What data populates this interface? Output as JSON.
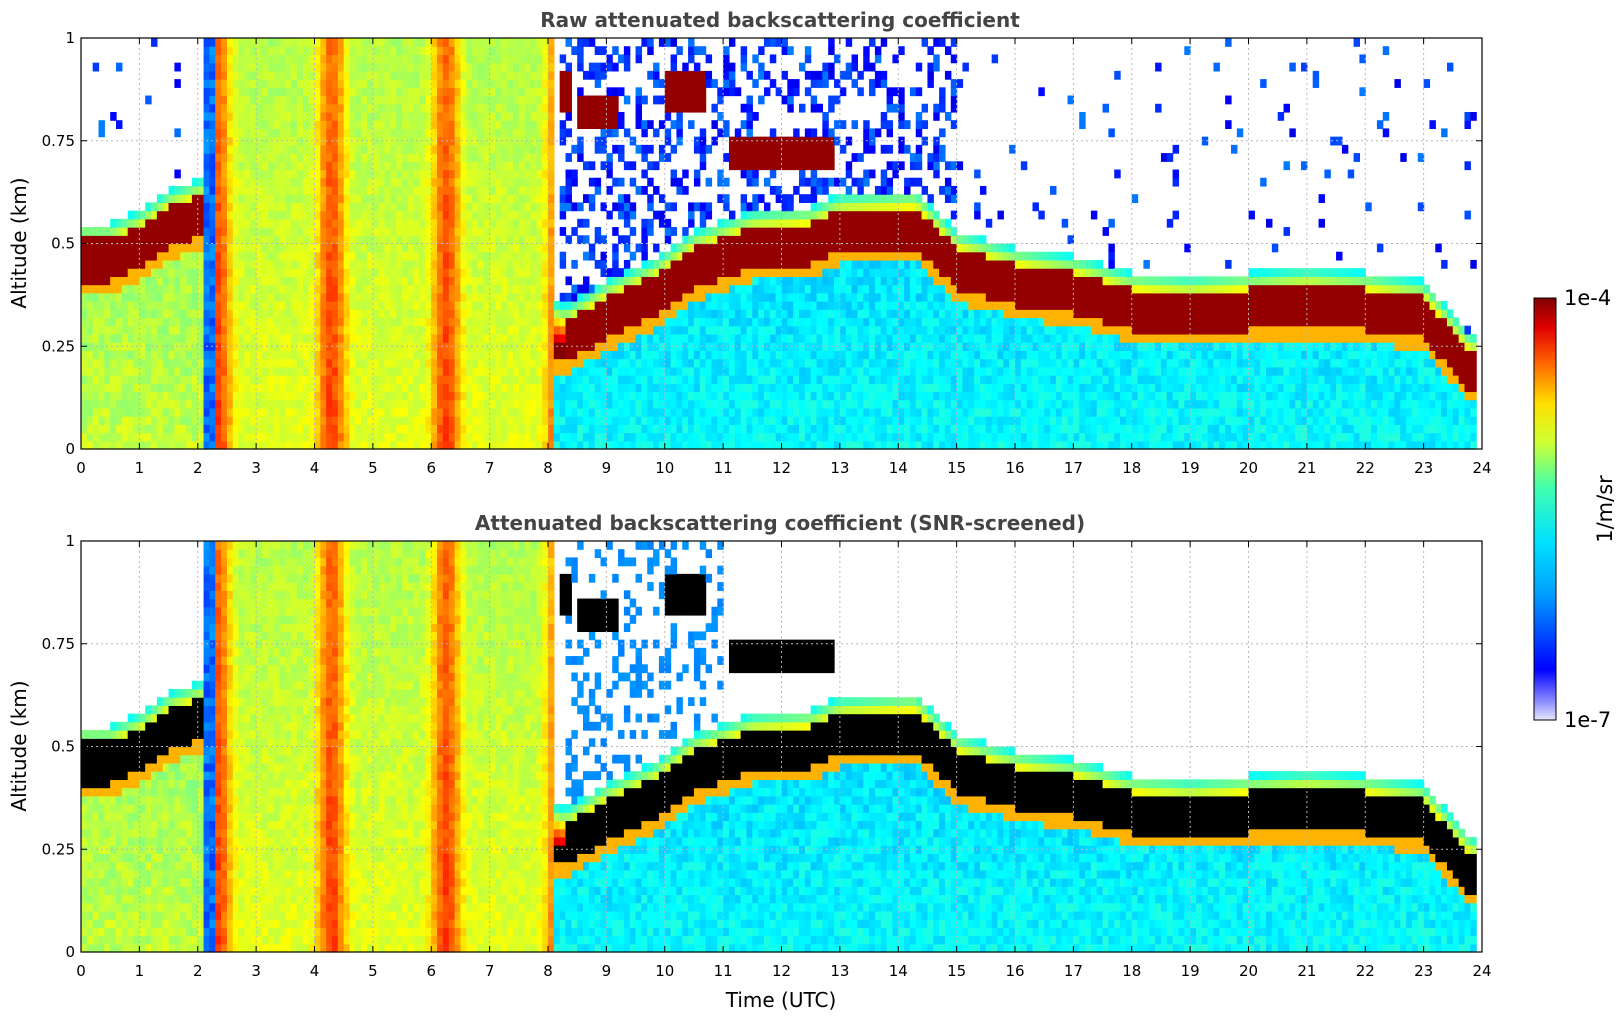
{
  "chart_data": [
    {
      "type": "heatmap",
      "title": "Raw attenuated backscattering coefficient",
      "xlabel": "",
      "ylabel": "Altitude (km)",
      "xlim": [
        0,
        24
      ],
      "ylim": [
        0,
        1
      ],
      "x_ticks": [
        "0",
        "1",
        "2",
        "3",
        "4",
        "5",
        "6",
        "7",
        "8",
        "9",
        "10",
        "11",
        "12",
        "13",
        "14",
        "15",
        "16",
        "17",
        "18",
        "19",
        "20",
        "21",
        "22",
        "23",
        "24"
      ],
      "y_ticks": [
        "0",
        "0.25",
        "0.5",
        "0.75",
        "1"
      ],
      "grid": true,
      "screened": false
    },
    {
      "type": "heatmap",
      "title": "Attenuated backscattering coefficient (SNR-screened)",
      "xlabel": "Time (UTC)",
      "ylabel": "Altitude (km)",
      "xlim": [
        0,
        24
      ],
      "ylim": [
        0,
        1
      ],
      "x_ticks": [
        "0",
        "1",
        "2",
        "3",
        "4",
        "5",
        "6",
        "7",
        "8",
        "9",
        "10",
        "11",
        "12",
        "13",
        "14",
        "15",
        "16",
        "17",
        "18",
        "19",
        "20",
        "21",
        "22",
        "23",
        "24"
      ],
      "y_ticks": [
        "0",
        "0.25",
        "0.5",
        "0.75",
        "1"
      ],
      "grid": true,
      "screened": true
    }
  ],
  "colorbar": {
    "label": "1/m/sr",
    "max_label": "1e-4",
    "min_label": "1e-7",
    "colormap": "jet",
    "scale": "log"
  },
  "cloud_layer_base_km": [
    [
      0,
      0.44
    ],
    [
      0.5,
      0.44
    ],
    [
      1,
      0.47
    ],
    [
      1.5,
      0.52
    ],
    [
      2.1,
      0.55
    ],
    [
      8.3,
      0.24
    ],
    [
      9,
      0.3
    ],
    [
      9.8,
      0.35
    ],
    [
      10.5,
      0.42
    ],
    [
      11.5,
      0.47
    ],
    [
      12.5,
      0.48
    ],
    [
      13,
      0.51
    ],
    [
      14.3,
      0.52
    ],
    [
      15,
      0.42
    ],
    [
      16,
      0.38
    ],
    [
      17,
      0.36
    ],
    [
      18,
      0.32
    ],
    [
      19,
      0.31
    ],
    [
      20,
      0.32
    ],
    [
      21,
      0.33
    ],
    [
      22,
      0.32
    ],
    [
      23,
      0.3
    ],
    [
      23.8,
      0.17
    ]
  ],
  "upper_cloud_segments": [
    {
      "t0": 8.2,
      "t1": 8.4,
      "alt": 0.87
    },
    {
      "t0": 8.5,
      "t1": 9.2,
      "alt": 0.82
    },
    {
      "t0": 10.0,
      "t1": 10.7,
      "alt": 0.87
    },
    {
      "t0": 11.1,
      "t1": 12.9,
      "alt": 0.72
    }
  ]
}
